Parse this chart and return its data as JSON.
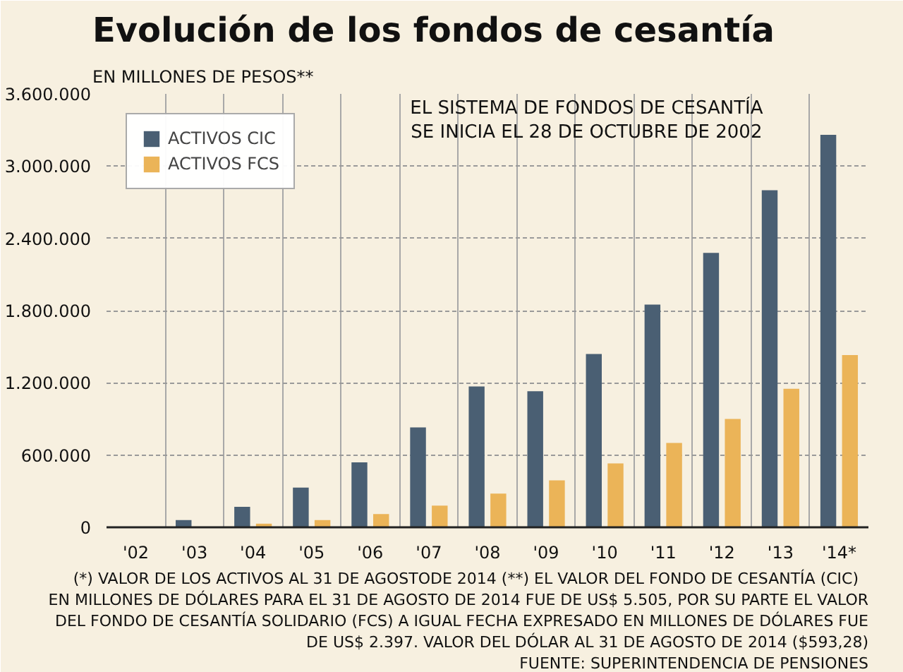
{
  "chart_data": {
    "type": "bar",
    "title": "Evolución de los fondos de cesantía",
    "subtitle": "EN MILLONES DE PESOS**",
    "categories": [
      "'02",
      "'03",
      "'04",
      "'05",
      "'06",
      "'07",
      "'08",
      "'09",
      "'10",
      "'11",
      "'12",
      "'13",
      "'14*"
    ],
    "series": [
      {
        "name": "ACTIVOS CIC",
        "color": "#4a5f73",
        "values": [
          0,
          60000,
          170000,
          330000,
          540000,
          830000,
          1170000,
          1130000,
          1440000,
          1850000,
          2280000,
          2800000,
          3260000
        ]
      },
      {
        "name": "ACTIVOS FCS",
        "color": "#ebb458",
        "values": [
          0,
          0,
          30000,
          60000,
          110000,
          180000,
          280000,
          390000,
          530000,
          700000,
          900000,
          1150000,
          1430000
        ]
      }
    ],
    "ylim": [
      0,
      3600000
    ],
    "yticks": [
      {
        "value": 0,
        "label": "0"
      },
      {
        "value": 600000,
        "label": "600.000"
      },
      {
        "value": 1200000,
        "label": "1.200.000"
      },
      {
        "value": 1800000,
        "label": "1.800.000"
      },
      {
        "value": 2400000,
        "label": "2.400.000"
      },
      {
        "value": 3000000,
        "label": "3.000.000"
      },
      {
        "value": 3600000,
        "label": "3.600.000"
      }
    ],
    "grid": true,
    "legend": "top left",
    "annotations": [
      "EL SISTEMA DE FONDOS DE CESANTÍA\nSE INICIA EL 28 DE OCTUBRE DE 2002",
      "(*) VALOR DE LOS ACTIVOS AL 31 DE AGOSTODE 2014   (**) EL VALOR DEL FONDO DE CESANTÍA (CIC)",
      "EN MILLONES DE DÓLARES PARA EL 31 DE AGOSTO DE 2014 FUE DE US$ 5.505, POR SU PARTE EL VALOR",
      "DEL FONDO DE CESANTÍA SOLIDARIO (FCS) A IGUAL FECHA EXPRESADO EN MILLONES DE DÓLARES FUE",
      "DE US$ 2.397. VALOR DEL DÓLAR AL 31 DE AGOSTO DE 2014 ($593,28)",
      "FUENTE: SUPERINTENDENCIA DE PENSIONES"
    ]
  }
}
